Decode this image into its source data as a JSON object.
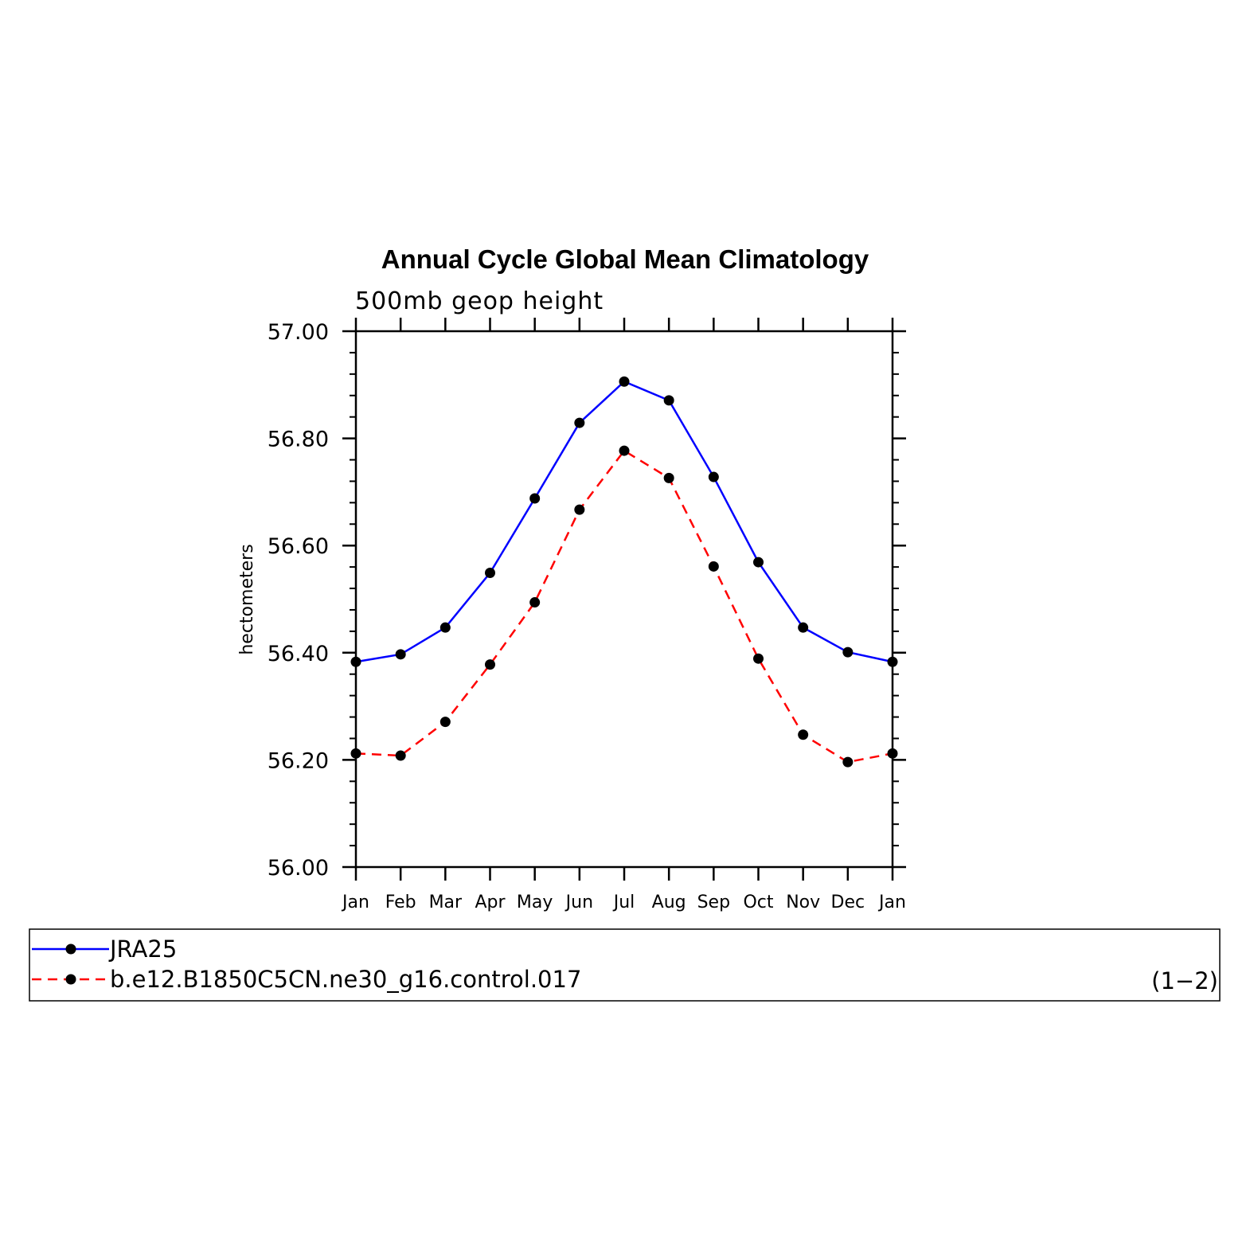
{
  "chart_data": {
    "type": "line",
    "title": "Annual Cycle Global Mean Climatology",
    "subtitle": "500mb geop height",
    "ylabel": "hectometers",
    "xlabel": "",
    "ylim": [
      56.0,
      57.0
    ],
    "yticks": [
      "56.00",
      "56.20",
      "56.40",
      "56.60",
      "56.80",
      "57.00"
    ],
    "categories": [
      "Jan",
      "Feb",
      "Mar",
      "Apr",
      "May",
      "Jun",
      "Jul",
      "Aug",
      "Sep",
      "Oct",
      "Nov",
      "Dec",
      "Jan"
    ],
    "series": [
      {
        "name": "JRA25",
        "color": "#0000ff",
        "dash": "solid",
        "values": [
          56.383,
          56.397,
          56.447,
          56.549,
          56.688,
          56.829,
          56.906,
          56.871,
          56.728,
          56.569,
          56.447,
          56.401,
          56.383
        ]
      },
      {
        "name": "b.e12.B1850C5CN.ne30_g16.control.017",
        "color": "#ff0000",
        "dash": "dashed",
        "values": [
          56.212,
          56.208,
          56.271,
          56.378,
          56.494,
          56.667,
          56.777,
          56.726,
          56.561,
          56.389,
          56.247,
          56.196,
          56.212
        ]
      }
    ],
    "legend_placement": "bottom",
    "legend_note": "(1−2)",
    "grid": false
  }
}
